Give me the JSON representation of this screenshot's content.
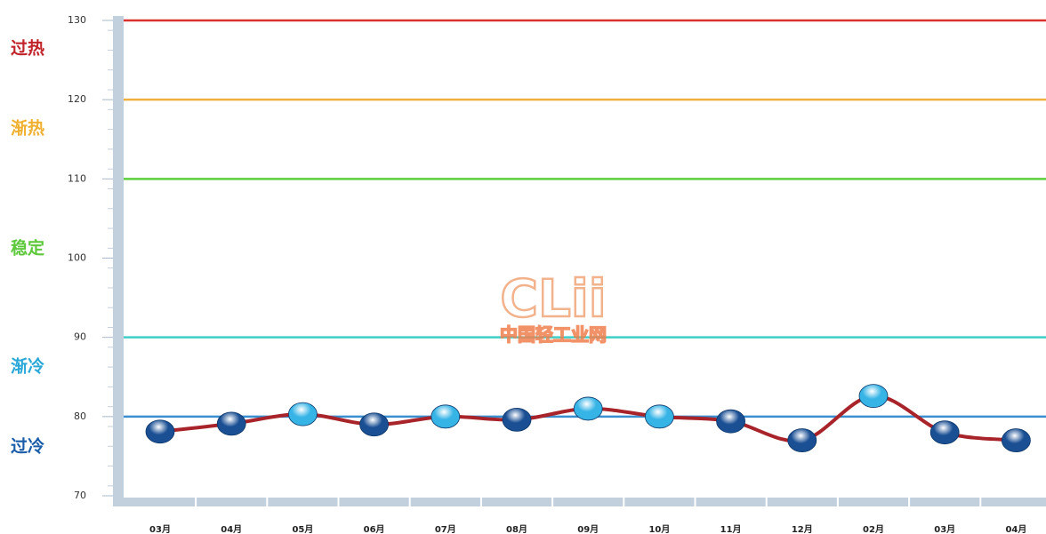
{
  "chart_data": {
    "type": "line",
    "categories": [
      "03月",
      "04月",
      "05月",
      "06月",
      "07月",
      "08月",
      "09月",
      "10月",
      "11月",
      "12月",
      "02月",
      "03月",
      "04月"
    ],
    "values": [
      78.1,
      79.1,
      80.3,
      79.0,
      80.0,
      79.6,
      81.0,
      80.0,
      79.4,
      77.0,
      82.6,
      78.0,
      77.0
    ],
    "color": "#a8242a",
    "marker_colors": [
      "#1a4f94",
      "#1a4f94",
      "#36b4e6",
      "#1a4f94",
      "#36b4e6",
      "#1a4f94",
      "#36b4e6",
      "#36b4e6",
      "#1a4f94",
      "#1a4f94",
      "#36b4e6",
      "#1a4f94",
      "#1a4f94"
    ],
    "ylim": [
      70,
      130
    ],
    "yticks": [
      70,
      80,
      90,
      100,
      110,
      120,
      130
    ],
    "reference_lines": [
      {
        "value": 130,
        "color": "#d9322e"
      },
      {
        "value": 120,
        "color": "#f0b040"
      },
      {
        "value": 110,
        "color": "#5ccf3c"
      },
      {
        "value": 90,
        "color": "#3fcfc8"
      },
      {
        "value": 80,
        "color": "#3a8fd0"
      }
    ],
    "zones": [
      {
        "label": "过热",
        "color": "#c0232a"
      },
      {
        "label": "渐热",
        "color": "#f0b030"
      },
      {
        "label": "稳定",
        "color": "#5cc83a"
      },
      {
        "label": "渐冷",
        "color": "#2aa8d8"
      },
      {
        "label": "过冷",
        "color": "#1a5da8"
      }
    ],
    "watermark": {
      "logo": "CLii",
      "text": "中国轻工业网"
    }
  }
}
